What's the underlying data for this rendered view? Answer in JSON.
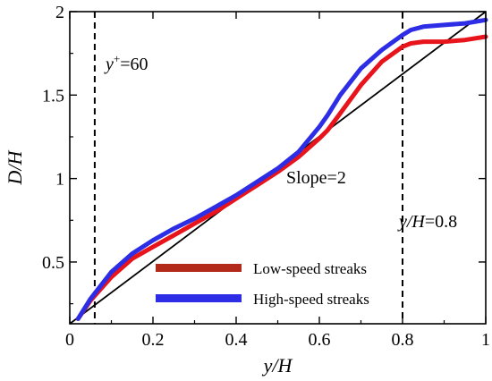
{
  "chart_data": {
    "type": "line",
    "xlabel": "y/H",
    "ylabel": "D/H",
    "xlim": [
      0,
      1
    ],
    "ylim": [
      0.13,
      2
    ],
    "x_ticks": [
      0,
      0.2,
      0.4,
      0.6,
      0.8,
      1
    ],
    "x_tick_labels": [
      "0",
      "0.2",
      "0.4",
      "0.6",
      "0.8",
      "1"
    ],
    "y_ticks": [
      0.5,
      1,
      1.5,
      2
    ],
    "y_tick_labels": [
      "0.5",
      "1",
      "1.5",
      "2"
    ],
    "grid": false,
    "legend_placement": "lower-right",
    "series": [
      {
        "name": "Low-speed streaks",
        "color": "#e8141c",
        "legend_color": "#b32a1a",
        "x": [
          0.02,
          0.05,
          0.1,
          0.15,
          0.2,
          0.25,
          0.3,
          0.35,
          0.4,
          0.45,
          0.5,
          0.55,
          0.6,
          0.62,
          0.65,
          0.7,
          0.75,
          0.8,
          0.82,
          0.85,
          0.9,
          0.95,
          1.0
        ],
        "values": [
          0.16,
          0.27,
          0.41,
          0.52,
          0.59,
          0.66,
          0.73,
          0.8,
          0.88,
          0.96,
          1.04,
          1.13,
          1.24,
          1.29,
          1.39,
          1.56,
          1.7,
          1.79,
          1.81,
          1.82,
          1.82,
          1.83,
          1.85
        ]
      },
      {
        "name": "High-speed streaks",
        "color": "#2d2de6",
        "legend_color": "#2d2de6",
        "x": [
          0.02,
          0.05,
          0.1,
          0.15,
          0.2,
          0.25,
          0.3,
          0.35,
          0.4,
          0.45,
          0.5,
          0.55,
          0.6,
          0.62,
          0.65,
          0.7,
          0.75,
          0.8,
          0.82,
          0.85,
          0.9,
          0.95,
          1.0
        ],
        "values": [
          0.16,
          0.28,
          0.44,
          0.55,
          0.63,
          0.7,
          0.76,
          0.83,
          0.9,
          0.98,
          1.06,
          1.16,
          1.31,
          1.38,
          1.5,
          1.66,
          1.77,
          1.86,
          1.89,
          1.91,
          1.92,
          1.93,
          1.95
        ]
      }
    ],
    "reference_line": {
      "label": "Slope=2",
      "x": [
        0,
        1
      ],
      "y": [
        0.13,
        2.0
      ],
      "color": "#000000"
    },
    "vlines": [
      {
        "x": 0.06,
        "label_prefix": "y",
        "label_sup": "+",
        "label_value": "=60"
      },
      {
        "x": 0.8,
        "label_var": "y/H",
        "label_value": "=0.8"
      }
    ]
  }
}
